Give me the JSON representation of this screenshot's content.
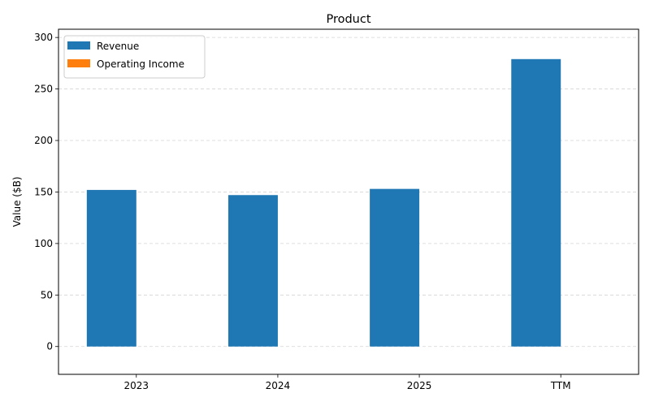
{
  "chart_data": {
    "type": "bar",
    "title": "Product",
    "xlabel": "",
    "ylabel": "Value ($B)",
    "categories": [
      "2023",
      "2024",
      "2025",
      "TTM"
    ],
    "series": [
      {
        "name": "Revenue",
        "values": [
          152,
          147,
          153,
          279
        ],
        "color": "#1f77b4"
      },
      {
        "name": "Operating Income",
        "values": [
          0,
          0,
          0,
          0
        ],
        "color": "#ff7f0e"
      }
    ],
    "ylim": [
      -27,
      308
    ],
    "yticks": [
      0,
      50,
      100,
      150,
      200,
      250,
      300
    ],
    "grid": "y",
    "legend": "top-left"
  }
}
